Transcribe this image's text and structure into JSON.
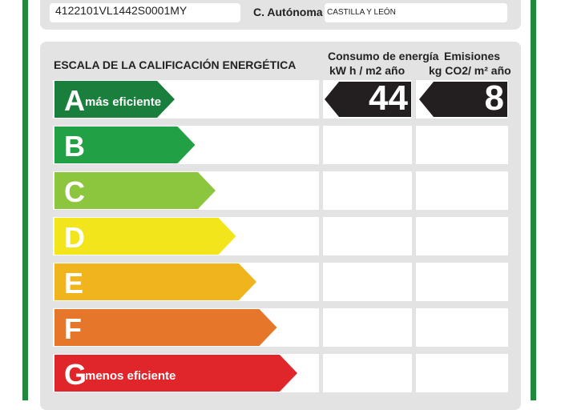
{
  "header": {
    "ref_catastral": "4122101VL1442S0001MY",
    "autonomia_label": "C. Autónoma",
    "autonomia_value": "CASTILLA Y LEÓN"
  },
  "scale": {
    "title": "ESCALA DE LA CALIFICACIÓN ENERGÉTICA",
    "consumo_header": [
      "Consumo de energía",
      "kW h / m2 año"
    ],
    "emisiones_header": [
      "Emisiones",
      "kg CO2/ m² año"
    ],
    "bars": [
      {
        "letter": "A",
        "desc": "más eficiente",
        "color": "#1a7f3c"
      },
      {
        "letter": "B",
        "desc": "",
        "color": "#22a046"
      },
      {
        "letter": "C",
        "desc": "",
        "color": "#8cc63f"
      },
      {
        "letter": "D",
        "desc": "",
        "color": "#f2e51c"
      },
      {
        "letter": "E",
        "desc": "",
        "color": "#f0b41c"
      },
      {
        "letter": "F",
        "desc": "",
        "color": "#e5762a"
      },
      {
        "letter": "G",
        "desc": "menos eficiente",
        "color": "#e1262b"
      }
    ],
    "rating": {
      "row": "A",
      "consumo": "44",
      "emisiones": "8",
      "tag_color": "#231f20"
    }
  }
}
